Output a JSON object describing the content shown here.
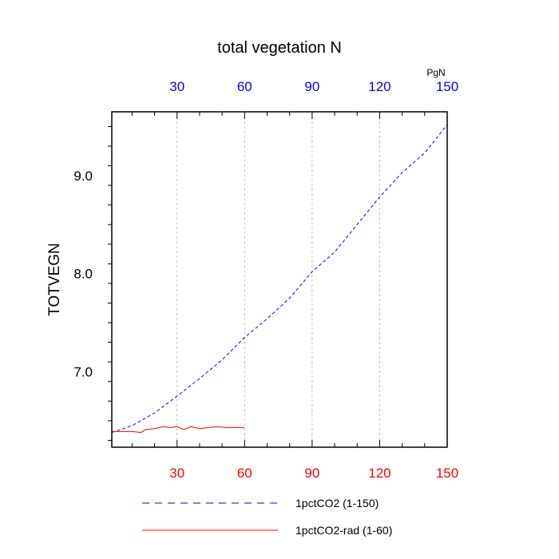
{
  "chart_data": {
    "type": "line",
    "title": "total vegetation N",
    "ylabel": "TOTVEGN",
    "units": "PgN",
    "xlim": [
      1,
      150
    ],
    "ylim": [
      6.23,
      9.65
    ],
    "x_ticks": [
      30,
      60,
      90,
      120,
      150
    ],
    "x_tick_labels": [
      "30",
      "60",
      "90",
      "120",
      "150"
    ],
    "y_ticks": [
      7.0,
      8.0,
      9.0
    ],
    "y_tick_labels": [
      "7.0",
      "8.0",
      "9.0"
    ],
    "grid": "vertical dashed",
    "top_axis_color": "#0000ff",
    "bottom_axis_color": "#ff0000",
    "legend_position": "bottom",
    "series": [
      {
        "name": "1pctCO2 (1-150)",
        "color": "#0000ff",
        "dash": "dashed",
        "x": [
          1,
          10,
          20,
          30,
          40,
          50,
          60,
          70,
          80,
          90,
          100,
          110,
          120,
          130,
          140,
          150
        ],
        "y": [
          6.38,
          6.45,
          6.58,
          6.75,
          6.93,
          7.12,
          7.35,
          7.54,
          7.75,
          8.02,
          8.22,
          8.5,
          8.78,
          9.03,
          9.23,
          9.52
        ]
      },
      {
        "name": "1pctCO2-rad (1-60)",
        "color": "#ff0000",
        "dash": "solid",
        "x": [
          1,
          5,
          10,
          14,
          16,
          20,
          24,
          27,
          30,
          33,
          36,
          40,
          44,
          48,
          52,
          56,
          60
        ],
        "y": [
          6.39,
          6.39,
          6.39,
          6.38,
          6.41,
          6.42,
          6.44,
          6.43,
          6.44,
          6.41,
          6.44,
          6.42,
          6.43,
          6.44,
          6.43,
          6.43,
          6.43
        ]
      }
    ]
  }
}
